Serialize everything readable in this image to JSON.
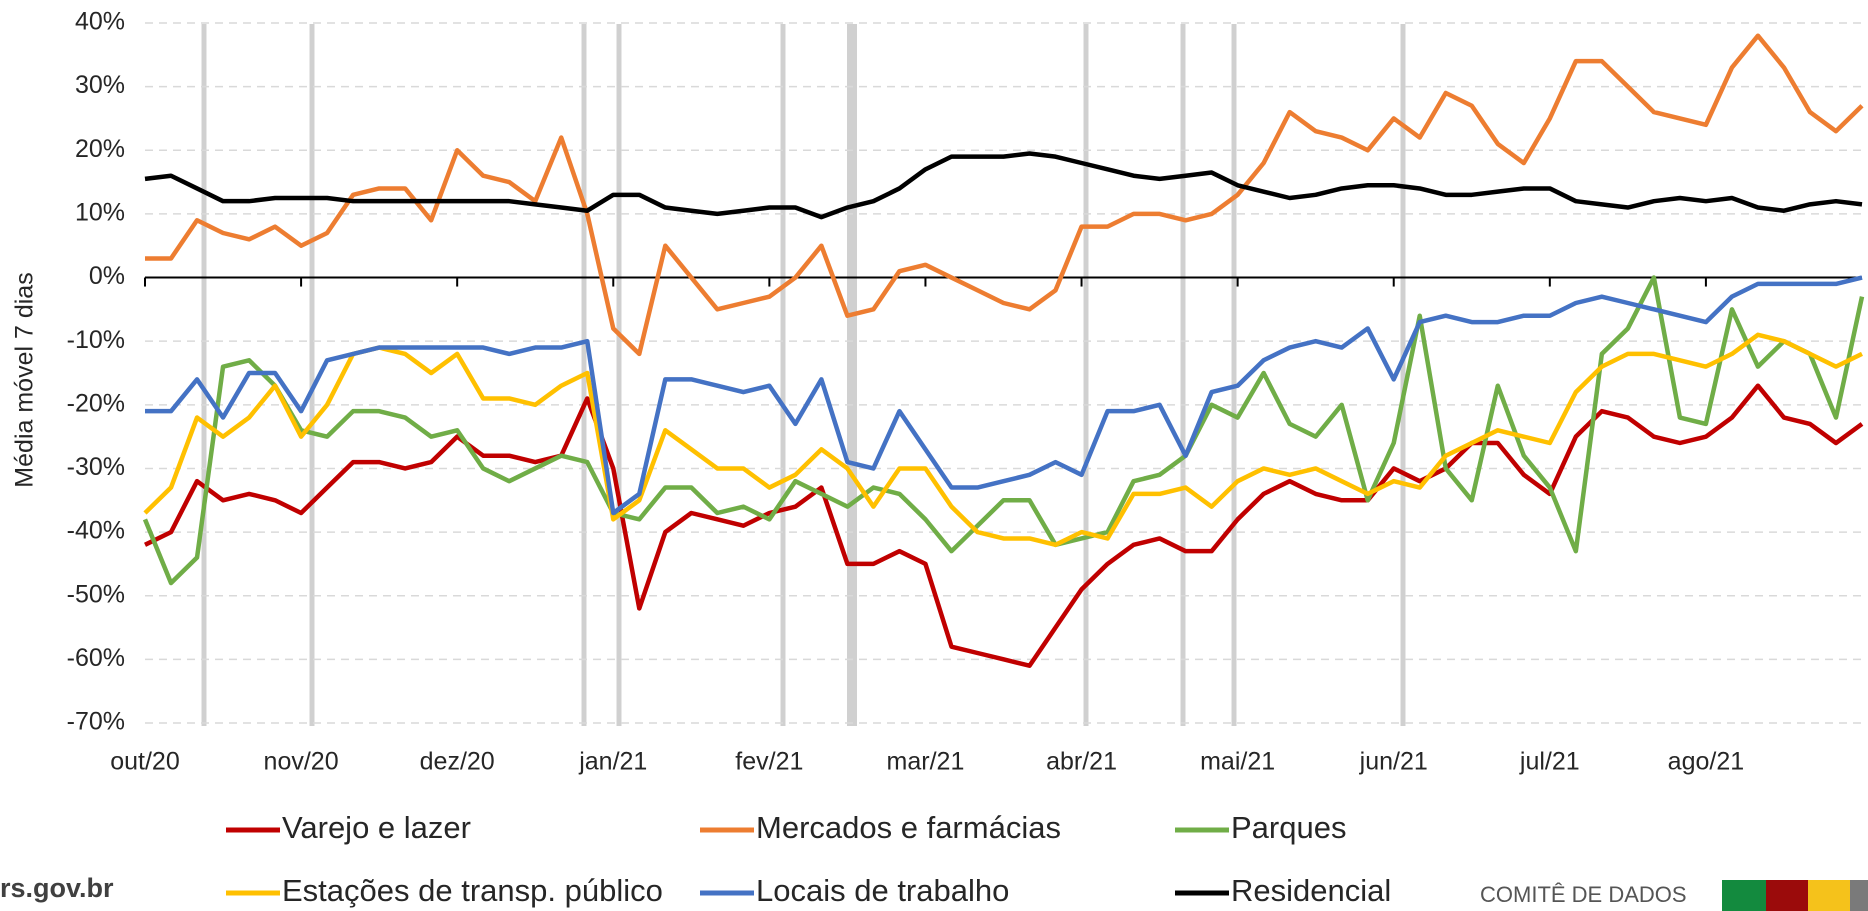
{
  "chart_data": {
    "type": "line",
    "y_label": "Média móvel 7 dias",
    "categories": [
      "out/20",
      null,
      null,
      null,
      null,
      null,
      "nov/20",
      null,
      null,
      null,
      null,
      null,
      "dez/20",
      null,
      null,
      null,
      null,
      null,
      "jan/21",
      null,
      null,
      null,
      null,
      null,
      "fev/21",
      null,
      null,
      null,
      null,
      null,
      "mar/21",
      null,
      null,
      null,
      null,
      null,
      "abr/21",
      null,
      null,
      null,
      null,
      null,
      "mai/21",
      null,
      null,
      null,
      null,
      null,
      "jun/21",
      null,
      null,
      null,
      null,
      null,
      "jul/21",
      null,
      null,
      null,
      null,
      null,
      "ago/21",
      null,
      null,
      null,
      null,
      null,
      null
    ],
    "ylim": [
      -70,
      40
    ],
    "yticks": [
      {
        "value": -70,
        "label": "-70%"
      },
      {
        "value": -60,
        "label": "-60%"
      },
      {
        "value": -50,
        "label": "-50%"
      },
      {
        "value": -40,
        "label": "-40%"
      },
      {
        "value": -30,
        "label": "-30%"
      },
      {
        "value": -20,
        "label": "-20%"
      },
      {
        "value": -10,
        "label": "-10%"
      },
      {
        "value": 0,
        "label": "0%"
      },
      {
        "value": 10,
        "label": "10%"
      },
      {
        "value": 20,
        "label": "20%"
      },
      {
        "value": 30,
        "label": "30%"
      },
      {
        "value": 40,
        "label": "40%"
      }
    ],
    "grid": true,
    "legend": "bottom",
    "series": [
      {
        "name": "Varejo e lazer",
        "color": "#c00000",
        "values": [
          -42,
          -40,
          -32,
          -35,
          -34,
          -35,
          -37,
          -33,
          -29,
          -29,
          -30,
          -29,
          -25,
          -28,
          -28,
          -29,
          -28,
          -19,
          -30,
          -52,
          -40,
          -37,
          -38,
          -39,
          -37,
          -36,
          -33,
          -45,
          -45,
          -43,
          -45,
          -58,
          -59,
          -60,
          -61,
          -55,
          -49,
          -45,
          -42,
          -41,
          -43,
          -43,
          -38,
          -34,
          -32,
          -34,
          -35,
          -35,
          -30,
          -32,
          -30,
          -26,
          -26,
          -31,
          -34,
          -25,
          -21,
          -22,
          -25,
          -26,
          -25,
          -22,
          -17,
          -22,
          -23,
          -26,
          -23
        ]
      },
      {
        "name": "Mercados e farmácias",
        "color": "#ed7d31",
        "values": [
          3,
          3,
          9,
          7,
          6,
          8,
          5,
          7,
          13,
          14,
          14,
          9,
          20,
          16,
          15,
          12,
          22,
          10,
          -8,
          -12,
          5,
          0,
          -5,
          -4,
          -3,
          0,
          5,
          -6,
          -5,
          1,
          2,
          0,
          -2,
          -4,
          -5,
          -2,
          8,
          8,
          10,
          10,
          9,
          10,
          13,
          18,
          26,
          23,
          22,
          20,
          25,
          22,
          29,
          27,
          21,
          18,
          25,
          34,
          34,
          30,
          26,
          25,
          24,
          33,
          38,
          33,
          26,
          23,
          27
        ]
      },
      {
        "name": "Parques",
        "color": "#70ad47",
        "values": [
          -38,
          -48,
          -44,
          -14,
          -13,
          -17,
          -24,
          -25,
          -21,
          -21,
          -22,
          -25,
          -24,
          -30,
          -32,
          -30,
          -28,
          -29,
          -37,
          -38,
          -33,
          -33,
          -37,
          -36,
          -38,
          -32,
          -34,
          -36,
          -33,
          -34,
          -38,
          -43,
          -39,
          -35,
          -35,
          -42,
          -41,
          -40,
          -32,
          -31,
          -28,
          -20,
          -22,
          -15,
          -23,
          -25,
          -20,
          -35,
          -26,
          -6,
          -30,
          -35,
          -17,
          -28,
          -33,
          -43,
          -12,
          -8,
          0,
          -22,
          -23,
          -5,
          -14,
          -10,
          -12,
          -22,
          -3
        ]
      },
      {
        "name": "Estações de transp. público",
        "color": "#ffc000",
        "values": [
          -37,
          -33,
          -22,
          -25,
          -22,
          -17,
          -25,
          -20,
          -12,
          -11,
          -12,
          -15,
          -12,
          -19,
          -19,
          -20,
          -17,
          -15,
          -38,
          -35,
          -24,
          -27,
          -30,
          -30,
          -33,
          -31,
          -27,
          -30,
          -36,
          -30,
          -30,
          -36,
          -40,
          -41,
          -41,
          -42,
          -40,
          -41,
          -34,
          -34,
          -33,
          -36,
          -32,
          -30,
          -31,
          -30,
          -32,
          -34,
          -32,
          -33,
          -28,
          -26,
          -24,
          -25,
          -26,
          -18,
          -14,
          -12,
          -12,
          -13,
          -14,
          -12,
          -9,
          -10,
          -12,
          -14,
          -12
        ]
      },
      {
        "name": "Locais de trabalho",
        "color": "#4472c4",
        "values": [
          -21,
          -21,
          -16,
          -22,
          -15,
          -15,
          -21,
          -13,
          -12,
          -11,
          -11,
          -11,
          -11,
          -11,
          -12,
          -11,
          -11,
          -10,
          -37,
          -34,
          -16,
          -16,
          -17,
          -18,
          -17,
          -23,
          -16,
          -29,
          -30,
          -21,
          -27,
          -33,
          -33,
          -32,
          -31,
          -29,
          -31,
          -21,
          -21,
          -20,
          -28,
          -18,
          -17,
          -13,
          -11,
          -10,
          -11,
          -8,
          -16,
          -7,
          -6,
          -7,
          -7,
          -6,
          -6,
          -4,
          -3,
          -4,
          -5,
          -6,
          -7,
          -3,
          -1,
          -1,
          -1,
          -1,
          0
        ]
      },
      {
        "name": "Residencial",
        "color": "#000000",
        "values": [
          15.5,
          16,
          14,
          12,
          12,
          12.5,
          12.5,
          12.5,
          12,
          12,
          12,
          12,
          12,
          12,
          12,
          11.5,
          11,
          10.5,
          13,
          13,
          11,
          10.5,
          10,
          10.5,
          11,
          11,
          9.5,
          11,
          12,
          14,
          17,
          19,
          19,
          19,
          19.5,
          19,
          18,
          17,
          16,
          15.5,
          16,
          16.5,
          14.5,
          13.5,
          12.5,
          13,
          14,
          14.5,
          14.5,
          14,
          13,
          13,
          13.5,
          14,
          14,
          12,
          11.5,
          11,
          12,
          12.5,
          12,
          12.5,
          11,
          10.5,
          11.5,
          12,
          11.5
        ]
      }
    ]
  },
  "footer": {
    "site": "rs.gov.br",
    "org": "COMITÊ DE DADOS"
  }
}
